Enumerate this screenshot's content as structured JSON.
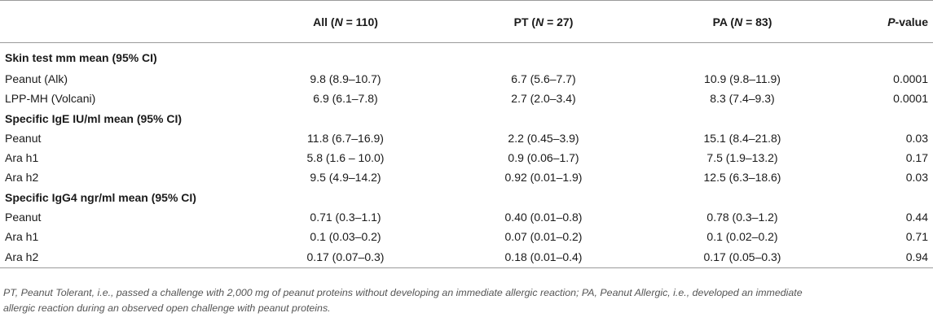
{
  "table": {
    "header": {
      "blank": "",
      "all_prefix": "All (",
      "all_n": "N",
      "all_suffix": " = 110)",
      "pt_prefix": "PT (",
      "pt_n": "N",
      "pt_suffix": " = 27)",
      "pa_prefix": "PA (",
      "pa_n": "N",
      "pa_suffix": " = 83)",
      "p_italic": "P",
      "p_suffix": "-value"
    },
    "sections": [
      {
        "title": "Skin test mm mean (95% CI)",
        "rows": [
          {
            "label": "Peanut (Alk)",
            "all": "9.8 (8.9–10.7)",
            "pt": "6.7 (5.6–7.7)",
            "pa": "10.9 (9.8–11.9)",
            "p": "0.0001"
          },
          {
            "label": "LPP-MH (Volcani)",
            "all": "6.9 (6.1–7.8)",
            "pt": "2.7 (2.0–3.4)",
            "pa": "8.3 (7.4–9.3)",
            "p": "0.0001"
          }
        ]
      },
      {
        "title": "Specific IgE IU/ml mean (95% CI)",
        "rows": [
          {
            "label": "Peanut",
            "all": "11.8 (6.7–16.9)",
            "pt": "2.2 (0.45–3.9)",
            "pa": "15.1 (8.4–21.8)",
            "p": "0.03"
          },
          {
            "label": "Ara h1",
            "all": "5.8 (1.6 – 10.0)",
            "pt": "0.9 (0.06–1.7)",
            "pa": "7.5 (1.9–13.2)",
            "p": "0.17"
          },
          {
            "label": "Ara h2",
            "all": "9.5 (4.9–14.2)",
            "pt": "0.92 (0.01–1.9)",
            "pa": "12.5 (6.3–18.6)",
            "p": "0.03"
          }
        ]
      },
      {
        "title": "Specific IgG4 ngr/ml mean (95% CI)",
        "rows": [
          {
            "label": "Peanut",
            "all": "0.71 (0.3–1.1)",
            "pt": "0.40 (0.01–0.8)",
            "pa": "0.78 (0.3–1.2)",
            "p": "0.44"
          },
          {
            "label": "Ara h1",
            "all": "0.1 (0.03–0.2)",
            "pt": "0.07 (0.01–0.2)",
            "pa": "0.1 (0.02–0.2)",
            "p": "0.71"
          },
          {
            "label": "Ara h2",
            "all": "0.17 (0.07–0.3)",
            "pt": "0.18 (0.01–0.4)",
            "pa": "0.17 (0.05–0.3)",
            "p": "0.94"
          }
        ]
      }
    ]
  },
  "footnote": {
    "line1": "PT, Peanut Tolerant, i.e., passed a challenge with 2,000 mg of peanut proteins without developing an immediate allergic reaction; PA, Peanut Allergic, i.e., developed an immediate",
    "line2": "allergic reaction during an observed open challenge with peanut proteins."
  }
}
